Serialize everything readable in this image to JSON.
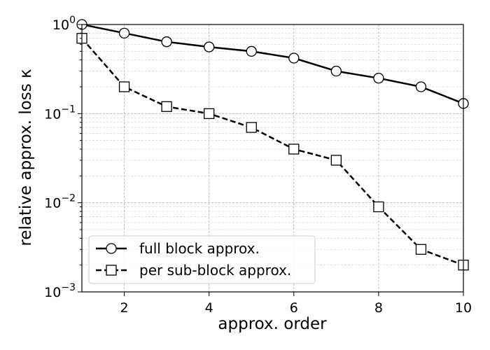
{
  "chart_data": {
    "type": "line",
    "title": "",
    "xlabel": "approx. order",
    "ylabel": "relative approx. loss κ",
    "yscale": "log",
    "xlim": [
      1,
      10
    ],
    "ylim": [
      0.001,
      1
    ],
    "grid": true,
    "legend_position": "lower-left",
    "x_ticks": [
      2,
      4,
      6,
      8,
      10
    ],
    "x_tick_labels": [
      "2",
      "4",
      "6",
      "8",
      "10"
    ],
    "y_ticks": [
      0.001,
      0.01,
      0.1,
      1
    ],
    "y_tick_labels": [
      {
        "base": "10",
        "exp": "−3"
      },
      {
        "base": "10",
        "exp": "−2"
      },
      {
        "base": "10",
        "exp": "−1"
      },
      {
        "base": "10",
        "exp": "0"
      }
    ],
    "x": [
      1,
      2,
      3,
      4,
      5,
      6,
      7,
      8,
      9,
      10
    ],
    "series": [
      {
        "name": "full block approx.",
        "marker": "circle",
        "line_style": "solid",
        "color": "#000000",
        "values": [
          1.0,
          0.8,
          0.64,
          0.56,
          0.5,
          0.42,
          0.3,
          0.25,
          0.2,
          0.13
        ]
      },
      {
        "name": "per sub-block approx.",
        "marker": "square",
        "line_style": "dashed",
        "color": "#000000",
        "values": [
          0.7,
          0.2,
          0.12,
          0.1,
          0.07,
          0.04,
          0.03,
          0.009,
          0.003,
          0.002
        ]
      }
    ]
  }
}
